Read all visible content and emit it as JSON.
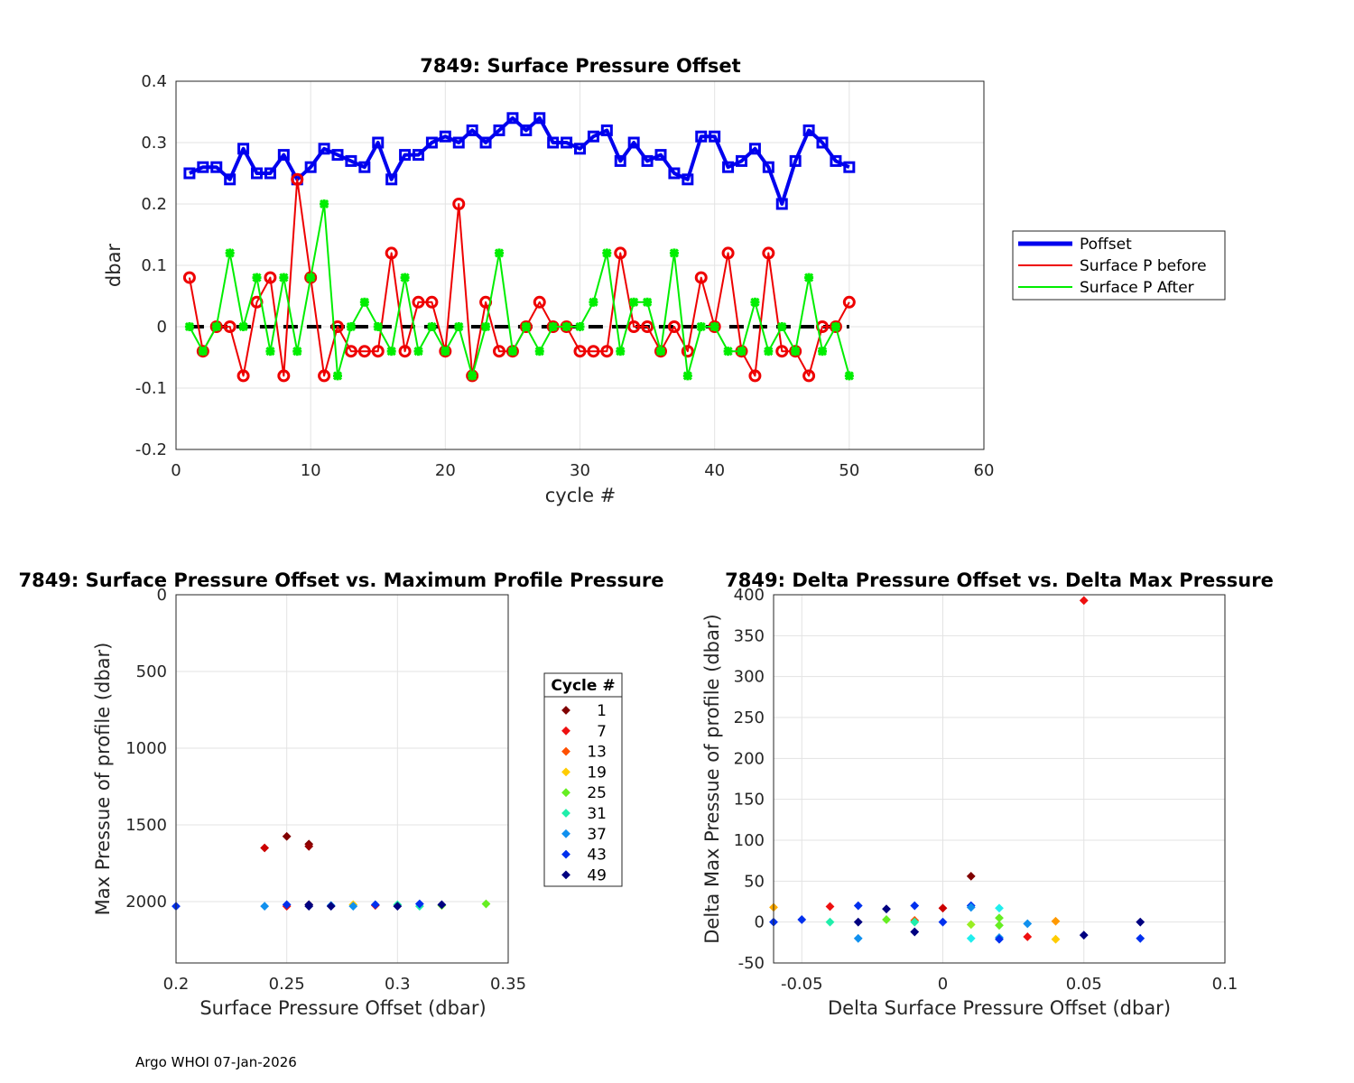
{
  "footer": "Argo WHOI 07-Jan-2026",
  "chart_data": [
    {
      "type": "line",
      "title": "7849: Surface Pressure Offset",
      "xlabel": "cycle #",
      "ylabel": "dbar",
      "xlim": [
        0,
        60
      ],
      "ylim": [
        -0.2,
        0.4
      ],
      "xticks": [
        0,
        10,
        20,
        30,
        40,
        50,
        60
      ],
      "yticks": [
        -0.2,
        -0.1,
        0,
        0.1,
        0.2,
        0.3,
        0.4
      ],
      "yticklabels": [
        "-0.2",
        "-0.1",
        "0",
        "0.1",
        "0.2",
        "0.3",
        "0.4"
      ],
      "grid": true,
      "legend_position": "right",
      "x": [
        1,
        2,
        3,
        4,
        5,
        6,
        7,
        8,
        9,
        10,
        11,
        12,
        13,
        14,
        15,
        16,
        17,
        18,
        19,
        20,
        21,
        22,
        23,
        24,
        25,
        26,
        27,
        28,
        29,
        30,
        31,
        32,
        33,
        34,
        35,
        36,
        37,
        38,
        39,
        40,
        41,
        42,
        43,
        44,
        45,
        46,
        47,
        48,
        49,
        50
      ],
      "series": [
        {
          "name": "Poffset",
          "color": "#0000ee",
          "values": [
            0.25,
            0.26,
            0.26,
            0.24,
            0.29,
            0.25,
            0.25,
            0.28,
            0.24,
            0.26,
            0.29,
            0.28,
            0.27,
            0.26,
            0.3,
            0.24,
            0.28,
            0.28,
            0.3,
            0.31,
            0.3,
            0.32,
            0.3,
            0.32,
            0.34,
            0.32,
            0.34,
            0.3,
            0.3,
            0.29,
            0.31,
            0.32,
            0.27,
            0.3,
            0.27,
            0.28,
            0.25,
            0.24,
            0.31,
            0.31,
            0.26,
            0.27,
            0.29,
            0.26,
            0.2,
            0.27,
            0.32,
            0.3,
            0.27,
            0.26
          ]
        },
        {
          "name": "Surface P before",
          "color": "#ee0000",
          "values": [
            0.08,
            -0.04,
            0,
            0,
            -0.08,
            0.04,
            0.08,
            -0.08,
            0.24,
            0.08,
            -0.08,
            0,
            -0.04,
            -0.04,
            -0.04,
            0.12,
            -0.04,
            0.04,
            0.04,
            -0.04,
            0.2,
            -0.08,
            0.04,
            -0.04,
            -0.04,
            0,
            0.04,
            0,
            0,
            -0.04,
            -0.04,
            -0.04,
            0.12,
            0,
            0,
            -0.04,
            0,
            -0.04,
            0.08,
            0,
            0.12,
            -0.04,
            -0.08,
            0.12,
            -0.04,
            -0.04,
            -0.08,
            0,
            0,
            0.04
          ]
        },
        {
          "name": "Surface P After",
          "color": "#00ee00",
          "values": [
            0,
            -0.04,
            0,
            0.12,
            0,
            0.08,
            -0.04,
            0.08,
            -0.04,
            0.08,
            0.2,
            -0.08,
            0,
            0.04,
            0,
            -0.04,
            0.08,
            -0.04,
            0,
            -0.04,
            0,
            -0.08,
            0,
            0.12,
            -0.04,
            0,
            -0.04,
            0,
            0,
            0,
            0.04,
            0.12,
            -0.04,
            0.04,
            0.04,
            -0.04,
            0.12,
            -0.08,
            0,
            0,
            -0.04,
            -0.04,
            0.04,
            -0.04,
            0,
            -0.04,
            0.08,
            -0.04,
            0,
            -0.08
          ]
        }
      ]
    },
    {
      "type": "scatter",
      "title": "7849: Surface Pressure Offset vs. Maximum Profile Pressure",
      "xlabel": "Surface Pressure Offset (dbar)",
      "ylabel": "Max Pressue of profile (dbar)",
      "xlim": [
        0.2,
        0.35
      ],
      "ylim": [
        0,
        2400
      ],
      "y_reversed": true,
      "xticks": [
        0.2,
        0.25,
        0.3,
        0.35
      ],
      "xticklabels": [
        "0.2",
        "0.25",
        "0.3",
        "0.35"
      ],
      "yticks": [
        0,
        500,
        1000,
        1500,
        2000
      ],
      "grid": true,
      "legend_title": "Cycle #",
      "legend_entries": [
        "1",
        "7",
        "13",
        "19",
        "25",
        "31",
        "37",
        "43",
        "49"
      ],
      "legend_colors": [
        "#800000",
        "#ee1010",
        "#ff5000",
        "#ffcc00",
        "#66ee22",
        "#20eeaa",
        "#1090ee",
        "#0030ee",
        "#000080"
      ],
      "points": [
        {
          "x": 0.25,
          "y": 1575,
          "c": "#800000"
        },
        {
          "x": 0.26,
          "y": 1625,
          "c": "#800000"
        },
        {
          "x": 0.26,
          "y": 1640,
          "c": "#990000"
        },
        {
          "x": 0.24,
          "y": 1650,
          "c": "#cc0000"
        },
        {
          "x": 0.25,
          "y": 2030,
          "c": "#ee1010"
        },
        {
          "x": 0.29,
          "y": 2025,
          "c": "#ee1010"
        },
        {
          "x": 0.28,
          "y": 2020,
          "c": "#ffcc00"
        },
        {
          "x": 0.26,
          "y": 2020,
          "c": "#ff5000"
        },
        {
          "x": 0.34,
          "y": 2015,
          "c": "#66ee22"
        },
        {
          "x": 0.32,
          "y": 2025,
          "c": "#66ee22"
        },
        {
          "x": 0.31,
          "y": 2030,
          "c": "#20eeaa"
        },
        {
          "x": 0.3,
          "y": 2020,
          "c": "#20eeaa"
        },
        {
          "x": 0.27,
          "y": 2025,
          "c": "#1090ee"
        },
        {
          "x": 0.28,
          "y": 2030,
          "c": "#1090ee"
        },
        {
          "x": 0.24,
          "y": 2030,
          "c": "#1090ee"
        },
        {
          "x": 0.2,
          "y": 2030,
          "c": "#0030ee"
        },
        {
          "x": 0.25,
          "y": 2020,
          "c": "#0030ee"
        },
        {
          "x": 0.29,
          "y": 2020,
          "c": "#0030ee"
        },
        {
          "x": 0.31,
          "y": 2015,
          "c": "#0030ee"
        },
        {
          "x": 0.26,
          "y": 2030,
          "c": "#000080"
        },
        {
          "x": 0.27,
          "y": 2030,
          "c": "#000080"
        },
        {
          "x": 0.3,
          "y": 2030,
          "c": "#000080"
        },
        {
          "x": 0.32,
          "y": 2020,
          "c": "#000080"
        },
        {
          "x": 0.26,
          "y": 2020,
          "c": "#000080"
        }
      ]
    },
    {
      "type": "scatter",
      "title": "7849: Delta Pressure Offset vs. Delta Max Pressure",
      "xlabel": "Delta Surface Pressure Offset (dbar)",
      "ylabel": "Delta Max Pressue of profile (dbar)",
      "xlim": [
        -0.06,
        0.1
      ],
      "ylim": [
        -50,
        400
      ],
      "xticks": [
        -0.05,
        0,
        0.05,
        0.1
      ],
      "xticklabels": [
        "-0.05",
        "0",
        "0.05",
        "0.1"
      ],
      "yticks": [
        -50,
        0,
        50,
        100,
        150,
        200,
        250,
        300,
        350,
        400
      ],
      "grid": true,
      "points": [
        {
          "x": 0.05,
          "y": 393,
          "c": "#ee1010"
        },
        {
          "x": 0.01,
          "y": 56,
          "c": "#800000"
        },
        {
          "x": -0.06,
          "y": 18,
          "c": "#ffaa00"
        },
        {
          "x": -0.06,
          "y": 0,
          "c": "#0030ee"
        },
        {
          "x": -0.05,
          "y": 3,
          "c": "#0030ee"
        },
        {
          "x": -0.04,
          "y": 19,
          "c": "#ee1010"
        },
        {
          "x": -0.04,
          "y": 0,
          "c": "#20eeaa"
        },
        {
          "x": -0.03,
          "y": 20,
          "c": "#0030ee"
        },
        {
          "x": -0.03,
          "y": 0,
          "c": "#000080"
        },
        {
          "x": -0.03,
          "y": -20,
          "c": "#1090ee"
        },
        {
          "x": -0.02,
          "y": 16,
          "c": "#000080"
        },
        {
          "x": -0.02,
          "y": 3,
          "c": "#66ee22"
        },
        {
          "x": -0.01,
          "y": 20,
          "c": "#0030ee"
        },
        {
          "x": -0.01,
          "y": 2,
          "c": "#ff5000"
        },
        {
          "x": -0.01,
          "y": 0,
          "c": "#20eeaa"
        },
        {
          "x": -0.01,
          "y": -12,
          "c": "#000080"
        },
        {
          "x": 0,
          "y": 17,
          "c": "#cc0000"
        },
        {
          "x": 0,
          "y": 0,
          "c": "#0030ee"
        },
        {
          "x": 0.01,
          "y": 20,
          "c": "#0030ee"
        },
        {
          "x": 0.01,
          "y": 18,
          "c": "#1090ee"
        },
        {
          "x": 0.01,
          "y": -3,
          "c": "#99ee22"
        },
        {
          "x": 0.01,
          "y": -20,
          "c": "#20eeee"
        },
        {
          "x": 0.02,
          "y": 17,
          "c": "#20eeee"
        },
        {
          "x": 0.02,
          "y": 5,
          "c": "#66ee22"
        },
        {
          "x": 0.02,
          "y": -4,
          "c": "#66ee22"
        },
        {
          "x": 0.02,
          "y": -19,
          "c": "#1090ee"
        },
        {
          "x": 0.02,
          "y": -21,
          "c": "#0030ee"
        },
        {
          "x": 0.03,
          "y": -2,
          "c": "#1090ee"
        },
        {
          "x": 0.03,
          "y": -18,
          "c": "#ee1010"
        },
        {
          "x": 0.04,
          "y": 1,
          "c": "#ff9900"
        },
        {
          "x": 0.04,
          "y": -21,
          "c": "#ffcc00"
        },
        {
          "x": 0.05,
          "y": -16,
          "c": "#000080"
        },
        {
          "x": 0.07,
          "y": 0,
          "c": "#000080"
        },
        {
          "x": 0.07,
          "y": -20,
          "c": "#0030ee"
        }
      ]
    }
  ]
}
